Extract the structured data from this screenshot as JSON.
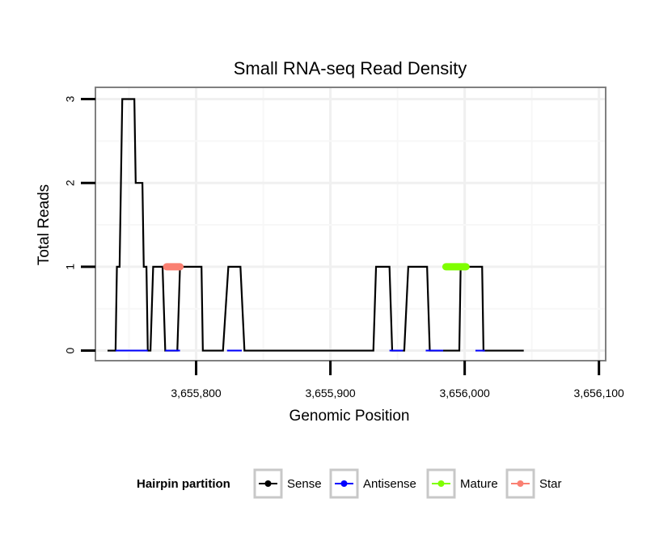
{
  "chart_data": {
    "type": "line",
    "title": "Small RNA-seq Read Density",
    "xlabel": "Genomic Position",
    "ylabel": "Total Reads",
    "xlim": [
      3655725,
      3656105
    ],
    "ylim": [
      -0.12,
      3.14
    ],
    "x_ticks": [
      3655800,
      3655900,
      3656000,
      3656100
    ],
    "x_tick_labels": [
      "3,655,800",
      "3,655,900",
      "3,656,000",
      "3,656,100"
    ],
    "y_ticks": [
      0,
      1,
      2,
      3
    ],
    "y_tick_labels": [
      "0",
      "1",
      "2",
      "3"
    ],
    "grid": true,
    "legend": {
      "title": "Hairpin partition",
      "position": "bottom",
      "entries": [
        {
          "name": "Sense",
          "color": "#000000"
        },
        {
          "name": "Antisense",
          "color": "#0000ff"
        },
        {
          "name": "Mature",
          "color": "#7fff00"
        },
        {
          "name": "Star",
          "color": "#fa8072"
        }
      ]
    },
    "series": [
      {
        "name": "Sense",
        "color": "#000000",
        "x": [
          3655734,
          3655740,
          3655741,
          3655743,
          3655744,
          3655745,
          3655746,
          3655754,
          3655755,
          3655760,
          3655761,
          3655763,
          3655764,
          3655766,
          3655768,
          3655775,
          3655777,
          3655786,
          3655788,
          3655804,
          3655805,
          3655820,
          3655824,
          3655833,
          3655836,
          3655932,
          3655934,
          3655944,
          3655946,
          3655955,
          3655958,
          3655972,
          3655974,
          3655996,
          3655997,
          3656013,
          3656014,
          3656044
        ],
        "values": [
          0,
          0,
          1,
          1,
          2,
          3,
          3,
          3,
          2,
          2,
          1,
          1,
          0,
          0,
          1,
          1,
          0,
          0,
          1,
          1,
          0,
          0,
          1,
          1,
          0,
          0,
          1,
          1,
          0,
          0,
          1,
          1,
          0,
          0,
          1,
          1,
          0,
          0
        ]
      },
      {
        "name": "Antisense",
        "color": "#0000ff",
        "segments": [
          [
            3655740,
            3655764
          ],
          [
            3655777,
            3655788
          ],
          [
            3655823,
            3655834
          ],
          [
            3655944,
            3655954
          ],
          [
            3655971,
            3655984
          ],
          [
            3656008,
            3656015
          ]
        ],
        "values": [
          0,
          0,
          0,
          0,
          0,
          0
        ]
      },
      {
        "name": "Mature",
        "color": "#7fff00",
        "x": [
          3655986,
          3656001
        ],
        "values": [
          1,
          1
        ]
      },
      {
        "name": "Star",
        "color": "#fa8072",
        "x": [
          3655778,
          3655788
        ],
        "values": [
          1,
          1
        ]
      }
    ]
  }
}
